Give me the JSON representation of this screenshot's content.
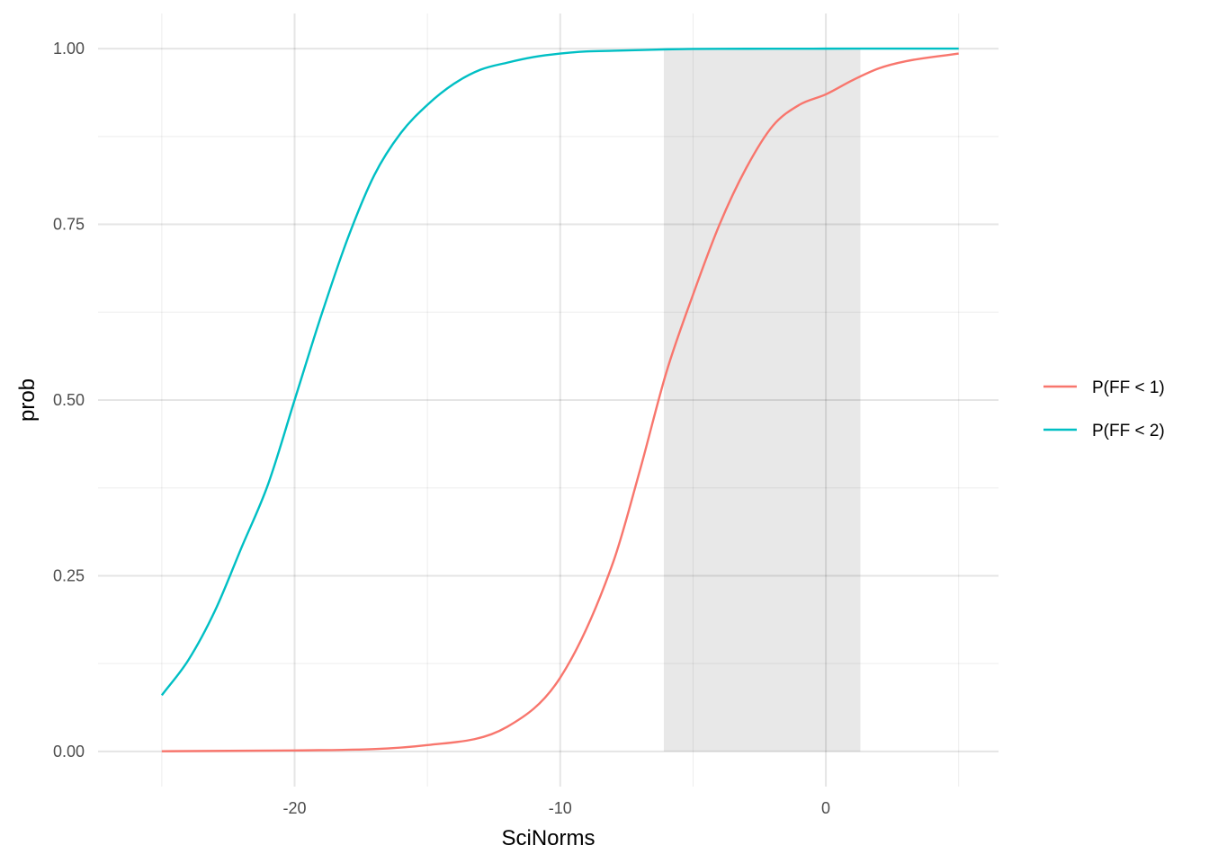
{
  "chart_data": {
    "type": "line",
    "title": "",
    "xlabel": "SciNorms",
    "ylabel": "prob",
    "xlim": [
      -27.4,
      6.5
    ],
    "ylim": [
      -0.05,
      1.05
    ],
    "x_ticks": [
      -20,
      -10,
      0
    ],
    "x_tick_labels": [
      "-20",
      "-10",
      "0"
    ],
    "x_minor_ticks": [
      -25,
      -15,
      -5,
      5
    ],
    "y_ticks": [
      0,
      0.25,
      0.5,
      0.75,
      1
    ],
    "y_tick_labels": [
      "0.00",
      "0.25",
      "0.50",
      "0.75",
      "1.00"
    ],
    "y_minor_ticks": [
      0.125,
      0.375,
      0.625,
      0.875
    ],
    "grid": true,
    "legend_position": "right",
    "shaded_region": {
      "x": [
        -6.1,
        1.3
      ],
      "color": "#e8e8e8"
    },
    "series": [
      {
        "name": "P(FF < 1)",
        "color": "#F8766D",
        "x": [
          -25,
          -20,
          -15,
          -12,
          -10,
          -8,
          -7,
          -6,
          -5,
          -4,
          -3,
          -2,
          -1,
          0,
          1,
          2,
          3,
          5
        ],
        "values": [
          0.0003,
          0.0014,
          0.009,
          0.035,
          0.105,
          0.27,
          0.4,
          0.54,
          0.65,
          0.75,
          0.83,
          0.89,
          0.92,
          0.935,
          0.955,
          0.972,
          0.982,
          0.993
        ]
      },
      {
        "name": "P(FF < 2)",
        "color": "#00BFC4",
        "x": [
          -25,
          -24,
          -23,
          -22,
          -21,
          -20,
          -19,
          -18,
          -17,
          -16,
          -15,
          -14,
          -13,
          -12,
          -11,
          -10,
          -9,
          -8,
          -7,
          -6,
          -5,
          -4,
          -3,
          -2,
          -1,
          0,
          1,
          2,
          3,
          4,
          5
        ],
        "values": [
          0.08,
          0.13,
          0.2,
          0.29,
          0.38,
          0.5,
          0.62,
          0.73,
          0.82,
          0.88,
          0.92,
          0.95,
          0.97,
          0.98,
          0.988,
          0.993,
          0.996,
          0.997,
          0.998,
          0.999,
          0.9995,
          0.9997,
          0.9998,
          0.9999,
          0.9999,
          0.99995,
          1,
          1,
          1,
          1,
          1
        ]
      }
    ]
  }
}
